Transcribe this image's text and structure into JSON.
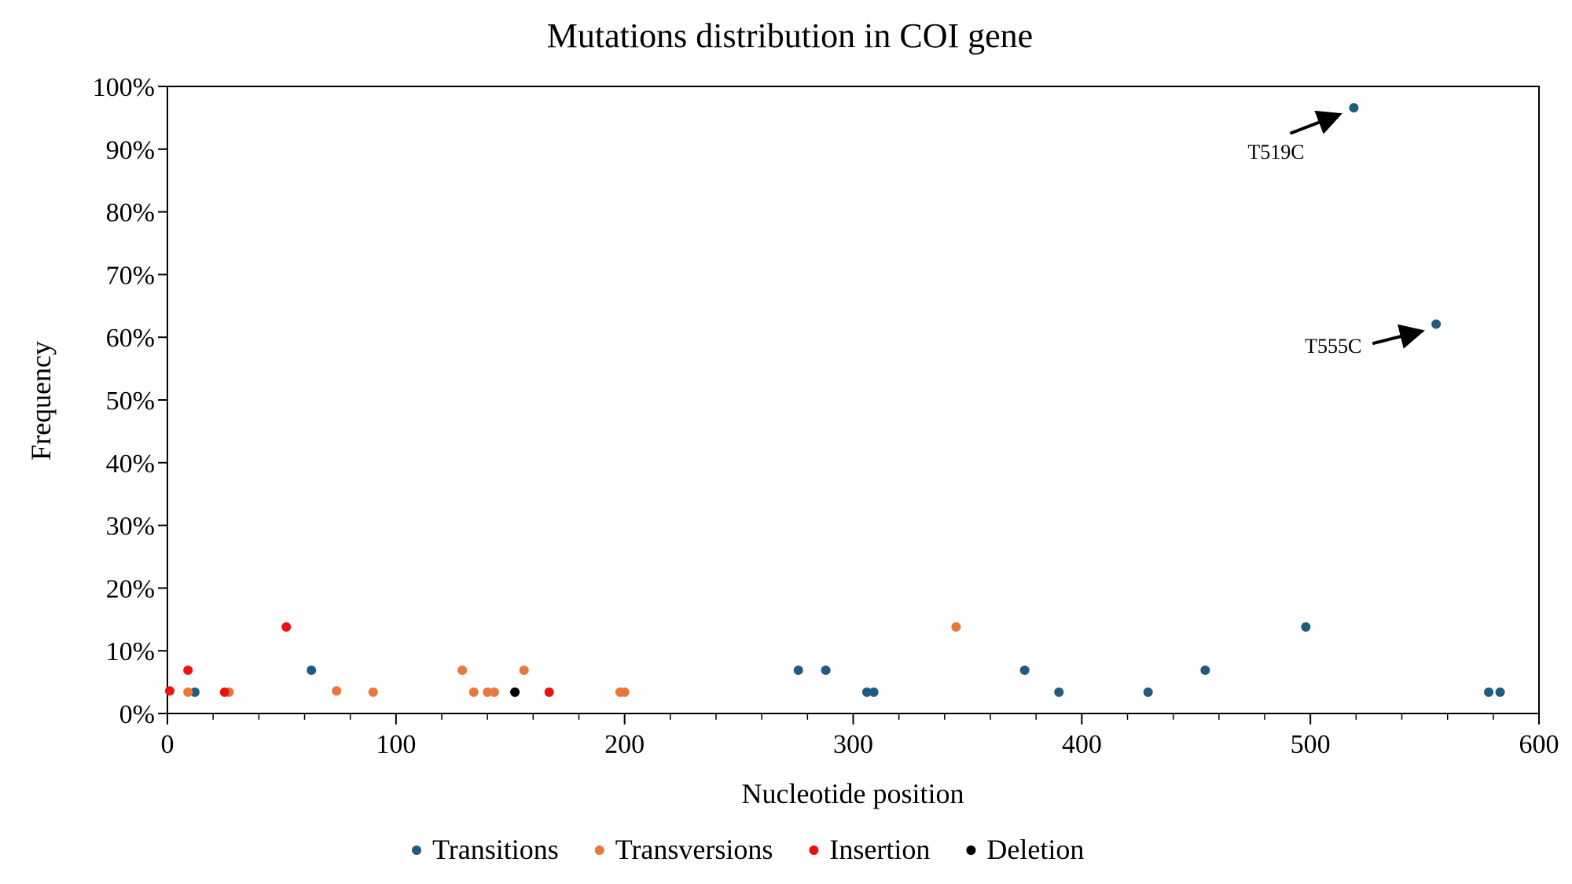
{
  "chart_data": {
    "type": "scatter",
    "title": "Mutations distribution in COI gene",
    "xlabel": "Nucleotide position",
    "ylabel": "Frequency",
    "xlim": [
      0,
      600
    ],
    "ylim": [
      0,
      100
    ],
    "x_ticks": [
      0,
      100,
      200,
      300,
      400,
      500,
      600
    ],
    "x_tick_labels": [
      "0",
      "100",
      "200",
      "300",
      "400",
      "500",
      "600"
    ],
    "y_ticks": [
      0,
      10,
      20,
      30,
      40,
      50,
      60,
      70,
      80,
      90,
      100
    ],
    "y_tick_labels": [
      "0%",
      "10%",
      "20%",
      "30%",
      "40%",
      "50%",
      "60%",
      "70%",
      "80%",
      "90%",
      "100%"
    ],
    "grid": false,
    "legend_position": "bottom",
    "series": [
      {
        "name": "Transitions",
        "color": "#1f5c82",
        "points": [
          {
            "x": 12,
            "y": 3.4
          },
          {
            "x": 63,
            "y": 6.9
          },
          {
            "x": 276,
            "y": 6.9
          },
          {
            "x": 288,
            "y": 6.9
          },
          {
            "x": 306,
            "y": 3.4
          },
          {
            "x": 309,
            "y": 3.4
          },
          {
            "x": 375,
            "y": 6.9
          },
          {
            "x": 390,
            "y": 3.4
          },
          {
            "x": 429,
            "y": 3.4
          },
          {
            "x": 454,
            "y": 6.9
          },
          {
            "x": 498,
            "y": 13.8
          },
          {
            "x": 519,
            "y": 96.6
          },
          {
            "x": 555,
            "y": 62.1
          },
          {
            "x": 578,
            "y": 3.4
          },
          {
            "x": 583,
            "y": 3.4
          }
        ]
      },
      {
        "name": "Transversions",
        "color": "#e8773a",
        "points": [
          {
            "x": 9,
            "y": 3.4
          },
          {
            "x": 27,
            "y": 3.4
          },
          {
            "x": 74,
            "y": 3.6
          },
          {
            "x": 90,
            "y": 3.4
          },
          {
            "x": 129,
            "y": 6.9
          },
          {
            "x": 134,
            "y": 3.4
          },
          {
            "x": 140,
            "y": 3.4
          },
          {
            "x": 143,
            "y": 3.4
          },
          {
            "x": 156,
            "y": 6.9
          },
          {
            "x": 198,
            "y": 3.4
          },
          {
            "x": 200,
            "y": 3.4
          },
          {
            "x": 345,
            "y": 13.8
          }
        ]
      },
      {
        "name": "Insertion",
        "color": "#ee1111",
        "points": [
          {
            "x": 1,
            "y": 3.6
          },
          {
            "x": 9,
            "y": 6.9
          },
          {
            "x": 25,
            "y": 3.4
          },
          {
            "x": 52,
            "y": 13.8
          },
          {
            "x": 167,
            "y": 3.4
          }
        ]
      },
      {
        "name": "Deletion",
        "color": "#000000",
        "points": [
          {
            "x": 152,
            "y": 3.4
          }
        ]
      }
    ],
    "annotations": [
      {
        "text": "T519C",
        "target": {
          "x": 519,
          "y": 96.6
        },
        "text_anchor_at": {
          "x": 485,
          "y": 88.5
        }
      },
      {
        "text": "T555C",
        "target": {
          "x": 555,
          "y": 62.1
        },
        "text_anchor_at": {
          "x": 510,
          "y": 57.5
        }
      }
    ]
  }
}
